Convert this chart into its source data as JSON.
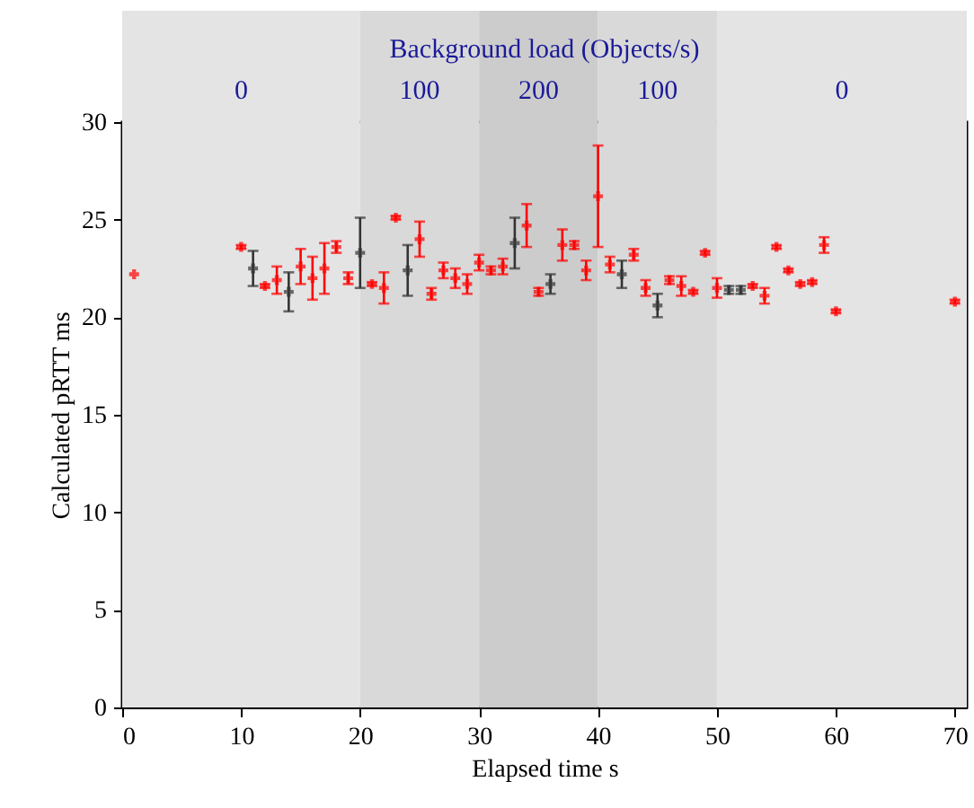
{
  "chart_data": {
    "type": "scatter",
    "title": "Background load (Objects/s)",
    "xlabel": "Elapsed time s",
    "ylabel": "Calculated pRTT ms",
    "x": [
      1,
      10,
      11,
      12,
      13,
      14,
      15,
      16,
      17,
      18,
      19,
      20,
      21,
      22,
      23,
      24,
      25,
      26,
      27,
      28,
      29,
      30,
      31,
      32,
      33,
      34,
      35,
      36,
      37,
      38,
      39,
      40,
      41,
      42,
      43,
      44,
      45,
      46,
      47,
      48,
      49,
      50,
      51,
      52,
      53,
      54,
      55,
      56,
      57,
      58,
      59,
      60,
      70
    ],
    "values": [
      22.2,
      23.6,
      22.5,
      21.6,
      21.9,
      21.3,
      22.6,
      22.0,
      22.5,
      23.6,
      22.0,
      23.3,
      21.7,
      21.5,
      25.1,
      22.4,
      24.0,
      21.2,
      22.4,
      22.0,
      21.7,
      22.8,
      22.4,
      22.6,
      23.8,
      24.7,
      21.3,
      21.7,
      23.7,
      23.7,
      22.4,
      26.2,
      22.7,
      22.2,
      23.2,
      21.5,
      20.6,
      21.9,
      21.6,
      21.3,
      23.3,
      21.5,
      21.4,
      21.4,
      21.6,
      21.1,
      23.6,
      22.4,
      21.7,
      21.8,
      23.7,
      20.3,
      20.8
    ],
    "errors": [
      null,
      0.1,
      0.9,
      0.1,
      0.7,
      1.0,
      0.9,
      1.1,
      1.3,
      0.3,
      0.3,
      1.8,
      0.1,
      0.8,
      0.1,
      1.3,
      0.9,
      0.3,
      0.4,
      0.5,
      0.5,
      0.4,
      0.2,
      0.4,
      1.3,
      1.1,
      0.2,
      0.5,
      0.8,
      0.2,
      0.5,
      2.6,
      0.4,
      0.7,
      0.3,
      0.4,
      0.6,
      0.2,
      0.5,
      0.1,
      0.1,
      0.5,
      0.2,
      0.2,
      0.1,
      0.4,
      0.1,
      0.1,
      0.1,
      0.1,
      0.4,
      0.1,
      0.1
    ],
    "colors": [
      "#ff0000",
      "#ff0000",
      "#333333",
      "#ff0000",
      "#ff0000",
      "#333333",
      "#ff0000",
      "#ff0000",
      "#ff0000",
      "#ff0000",
      "#ff0000",
      "#333333",
      "#ff0000",
      "#ff0000",
      "#ff0000",
      "#333333",
      "#ff0000",
      "#ff0000",
      "#ff0000",
      "#ff0000",
      "#ff0000",
      "#ff0000",
      "#ff0000",
      "#ff0000",
      "#333333",
      "#ff0000",
      "#ff0000",
      "#333333",
      "#ff0000",
      "#ff0000",
      "#ff0000",
      "#ff0000",
      "#ff0000",
      "#333333",
      "#ff0000",
      "#ff0000",
      "#333333",
      "#ff0000",
      "#ff0000",
      "#ff0000",
      "#ff0000",
      "#ff0000",
      "#333333",
      "#333333",
      "#ff0000",
      "#ff0000",
      "#ff0000",
      "#ff0000",
      "#ff0000",
      "#ff0000",
      "#ff0000",
      "#ff0000",
      "#ff0000"
    ],
    "marker": "cross",
    "grid": false,
    "xlim": [
      0,
      71
    ],
    "xticks": [
      0,
      10,
      20,
      30,
      40,
      50,
      60,
      70
    ],
    "ylim": [
      0,
      30
    ],
    "yticks": [
      0,
      5,
      10,
      15,
      20,
      25,
      30
    ],
    "bands": [
      {
        "axis": "x",
        "from": 0,
        "to": 20,
        "label": "0",
        "color": "#e4e4e4"
      },
      {
        "axis": "x",
        "from": 20,
        "to": 30,
        "label": "100",
        "color": "#d9d9d9"
      },
      {
        "axis": "x",
        "from": 30,
        "to": 40,
        "label": "200",
        "color": "#cccccc"
      },
      {
        "axis": "x",
        "from": 40,
        "to": 50,
        "label": "100",
        "color": "#d9d9d9"
      },
      {
        "axis": "x",
        "from": 50,
        "to": 71,
        "label": "0",
        "color": "#e4e4e4"
      }
    ]
  }
}
